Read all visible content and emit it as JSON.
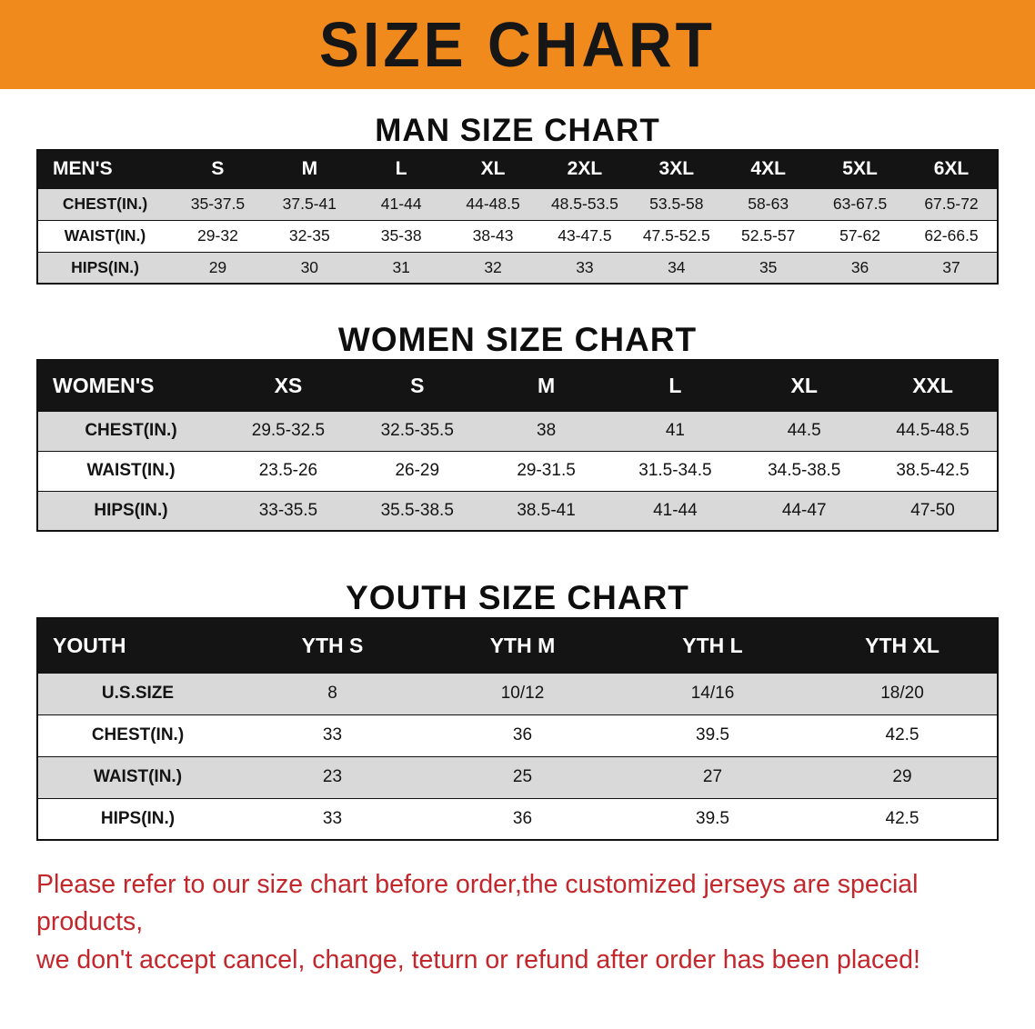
{
  "banner": {
    "title": "SIZE CHART"
  },
  "colors": {
    "banner_bg": "#f08a1d",
    "note_red": "#c3262b",
    "header_bg": "#141414",
    "stripe": "#d9d9d9"
  },
  "sections": [
    {
      "heading": "MAN SIZE CHART",
      "table": {
        "header": [
          "MEN'S",
          "S",
          "M",
          "L",
          "XL",
          "2XL",
          "3XL",
          "4XL",
          "5XL",
          "6XL"
        ],
        "rows": [
          {
            "label": "CHEST(IN.)",
            "values": [
              "35-37.5",
              "37.5-41",
              "41-44",
              "44-48.5",
              "48.5-53.5",
              "53.5-58",
              "58-63",
              "63-67.5",
              "67.5-72"
            ]
          },
          {
            "label": "WAIST(IN.)",
            "values": [
              "29-32",
              "32-35",
              "35-38",
              "38-43",
              "43-47.5",
              "47.5-52.5",
              "52.5-57",
              "57-62",
              "62-66.5"
            ]
          },
          {
            "label": "HIPS(IN.)",
            "values": [
              "29",
              "30",
              "31",
              "32",
              "33",
              "34",
              "35",
              "36",
              "37"
            ]
          }
        ]
      }
    },
    {
      "heading": "WOMEN SIZE CHART",
      "table": {
        "header": [
          "WOMEN'S",
          "XS",
          "S",
          "M",
          "L",
          "XL",
          "XXL"
        ],
        "rows": [
          {
            "label": "CHEST(IN.)",
            "values": [
              "29.5-32.5",
              "32.5-35.5",
              "38",
              "41",
              "44.5",
              "44.5-48.5"
            ]
          },
          {
            "label": "WAIST(IN.)",
            "values": [
              "23.5-26",
              "26-29",
              "29-31.5",
              "31.5-34.5",
              "34.5-38.5",
              "38.5-42.5"
            ]
          },
          {
            "label": "HIPS(IN.)",
            "values": [
              "33-35.5",
              "35.5-38.5",
              "38.5-41",
              "41-44",
              "44-47",
              "47-50"
            ]
          }
        ]
      }
    },
    {
      "heading": "YOUTH SIZE CHART",
      "table": {
        "header": [
          "YOUTH",
          "YTH S",
          "YTH M",
          "YTH L",
          "YTH XL"
        ],
        "rows": [
          {
            "label": "U.S.SIZE",
            "values": [
              "8",
              "10/12",
              "14/16",
              "18/20"
            ]
          },
          {
            "label": "CHEST(IN.)",
            "values": [
              "33",
              "36",
              "39.5",
              "42.5"
            ]
          },
          {
            "label": "WAIST(IN.)",
            "values": [
              "23",
              "25",
              "27",
              "29"
            ]
          },
          {
            "label": "HIPS(IN.)",
            "values": [
              "33",
              "36",
              "39.5",
              "42.5"
            ]
          }
        ]
      }
    }
  ],
  "note": {
    "lines": [
      "Please refer to our size chart before order,the customized jerseys are special products,",
      "we don't accept cancel, change, teturn or refund after order has been placed!"
    ]
  }
}
